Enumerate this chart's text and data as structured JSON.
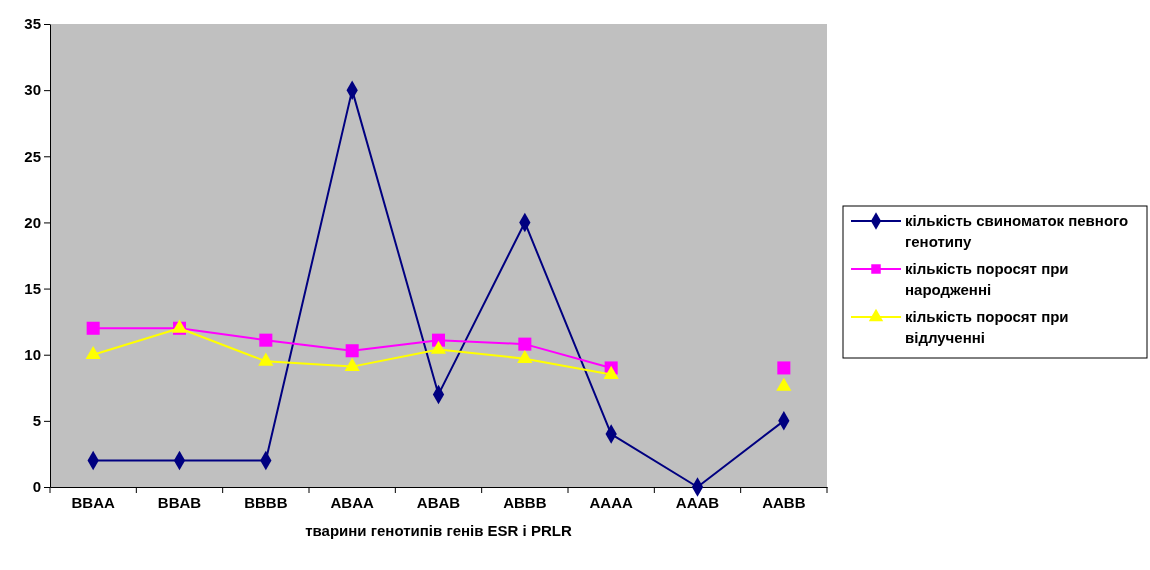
{
  "chart_data": {
    "type": "line",
    "xlabel": "тварини генотипів генів ESR і PRLR",
    "categories": [
      "BBAA",
      "BBAB",
      "BBBB",
      "ABAA",
      "ABAB",
      "ABBB",
      "AAAA",
      "AAAB",
      "AABB"
    ],
    "series": [
      {
        "name": "кількість свиноматок певного генотипу",
        "color": "#000080",
        "marker": "diamond",
        "values": [
          2,
          2,
          2,
          30,
          7,
          20,
          4,
          0,
          5
        ]
      },
      {
        "name": "кількість поросят при народженні",
        "color": "#ff00ff",
        "marker": "square",
        "values": [
          12,
          12,
          11.1,
          10.3,
          11.1,
          10.8,
          9,
          null,
          9
        ]
      },
      {
        "name": "кількість поросят при відлученні",
        "color": "#ffff00",
        "marker": "triangle",
        "values": [
          10,
          12,
          9.5,
          9.1,
          10.4,
          9.7,
          8.5,
          null,
          7.6
        ]
      }
    ],
    "ylim": [
      0,
      35
    ],
    "yticks": [
      0,
      5,
      10,
      15,
      20,
      25,
      30,
      35
    ],
    "grid": false,
    "legend": "right",
    "line_style": "solid"
  }
}
